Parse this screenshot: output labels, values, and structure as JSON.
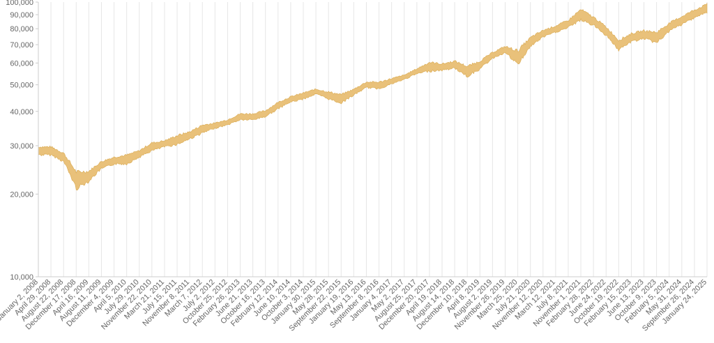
{
  "chart_data": {
    "type": "area",
    "title": "",
    "xlabel": "",
    "ylabel": "",
    "y_scale": "log",
    "ylim": [
      10000,
      100000
    ],
    "y_ticks": [
      {
        "value": 10000,
        "label": "10,000"
      },
      {
        "value": 20000,
        "label": "20,000"
      },
      {
        "value": 30000,
        "label": "30,000"
      },
      {
        "value": 40000,
        "label": "40,000"
      },
      {
        "value": 50000,
        "label": "50,000"
      },
      {
        "value": 60000,
        "label": "60,000"
      },
      {
        "value": 70000,
        "label": "70,000"
      },
      {
        "value": 80000,
        "label": "80,000"
      },
      {
        "value": 90000,
        "label": "90,000"
      },
      {
        "value": 100000,
        "label": "100,000"
      }
    ],
    "x_ticks": [
      "January 2, 2008",
      "April 29, 2008",
      "August 22, 2008",
      "December 17, 2008",
      "April 16, 2009",
      "August 11, 2009",
      "December 4, 2009",
      "April 5, 2010",
      "July 29, 2010",
      "November 22, 2010",
      "March 21, 2011",
      "July 15, 2011",
      "November 8, 2011",
      "March 7, 2012",
      "July 2, 2012",
      "October 25, 2012",
      "February 26, 2013",
      "June 21, 2013",
      "October 16, 2013",
      "February 12, 2014",
      "June 10, 2014",
      "October 3, 2014",
      "January 30, 2015",
      "May 28, 2015",
      "September 22, 2015",
      "January 19, 2016",
      "May 13, 2016",
      "September 8, 2016",
      "January 4, 2017",
      "May 2, 2017",
      "August 25, 2017",
      "December 20, 2017",
      "April 19, 2018",
      "August 14, 2018",
      "December 10, 2018",
      "April 8, 2019",
      "August 2, 2019",
      "November 26, 2019",
      "March 25, 2020",
      "July 21, 2020",
      "November 12, 2020",
      "March 12, 2021",
      "July 8, 2021",
      "November 1, 2021",
      "February 28, 2022",
      "June 24, 2022",
      "October 19, 2022",
      "February 15, 2023",
      "June 13, 2023",
      "October 9, 2023",
      "February 5, 2024",
      "May 31, 2024",
      "September 26, 2024",
      "January 24, 2025"
    ],
    "grid": {
      "x": true,
      "y": false
    },
    "legend": "none",
    "series": [
      {
        "color": "#e9c17a",
        "stroke": "#d9a94f",
        "x": [
          "January 2, 2008",
          "April 29, 2008",
          "August 22, 2008",
          "December 17, 2008",
          "April 16, 2009",
          "August 11, 2009",
          "December 4, 2009",
          "April 5, 2010",
          "July 29, 2010",
          "November 22, 2010",
          "March 21, 2011",
          "July 15, 2011",
          "November 8, 2011",
          "March 7, 2012",
          "July 2, 2012",
          "October 25, 2012",
          "February 26, 2013",
          "June 21, 2013",
          "October 16, 2013",
          "February 12, 2014",
          "June 10, 2014",
          "October 3, 2014",
          "January 30, 2015",
          "May 28, 2015",
          "September 22, 2015",
          "January 19, 2016",
          "May 13, 2016",
          "September 8, 2016",
          "January 4, 2017",
          "May 2, 2017",
          "August 25, 2017",
          "December 20, 2017",
          "April 19, 2018",
          "August 14, 2018",
          "December 10, 2018",
          "April 8, 2019",
          "August 2, 2019",
          "November 26, 2019",
          "March 25, 2020",
          "July 21, 2020",
          "November 12, 2020",
          "March 12, 2021",
          "July 8, 2021",
          "November 1, 2021",
          "February 28, 2022",
          "June 24, 2022",
          "October 19, 2022",
          "February 15, 2023",
          "June 13, 2023",
          "October 9, 2023",
          "February 5, 2024",
          "May 31, 2024",
          "September 26, 2024",
          "January 24, 2025"
        ],
        "low": [
          27500,
          27500,
          26000,
          20500,
          22000,
          24500,
          25500,
          25500,
          27000,
          28500,
          29500,
          30000,
          31500,
          33000,
          34500,
          35500,
          37000,
          37000,
          38000,
          40500,
          43000,
          44000,
          46000,
          44000,
          42500,
          45500,
          48500,
          48000,
          50000,
          52000,
          54500,
          55500,
          56000,
          57000,
          53000,
          56500,
          62000,
          65000,
          58000,
          68000,
          74000,
          77000,
          80000,
          85000,
          81500,
          75000,
          66000,
          71000,
          73000,
          70000,
          77500,
          82000,
          87000,
          91000
        ],
        "high": [
          30000,
          30000,
          28500,
          24500,
          24500,
          26500,
          27500,
          28000,
          29000,
          31000,
          31500,
          33000,
          34000,
          36000,
          36500,
          37500,
          39500,
          39500,
          40500,
          43500,
          45500,
          47000,
          48500,
          47500,
          46500,
          48500,
          51500,
          51500,
          53000,
          54500,
          57500,
          61000,
          60000,
          61500,
          59000,
          61500,
          66000,
          69500,
          67500,
          75000,
          79500,
          82500,
          86500,
          95000,
          89000,
          82000,
          73500,
          77500,
          79500,
          78500,
          84500,
          89500,
          94500,
          99000
        ]
      }
    ]
  }
}
